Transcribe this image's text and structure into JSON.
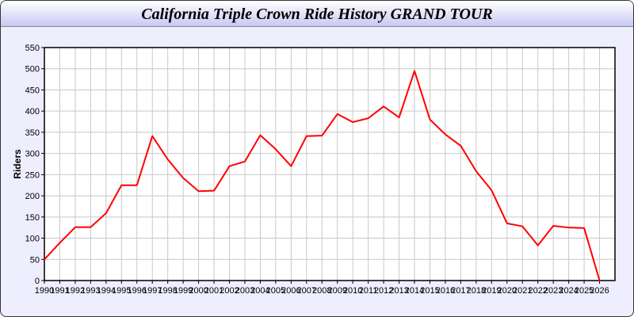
{
  "title": "California Triple Crown Ride History GRAND TOUR",
  "chart_data": {
    "type": "line",
    "title": "California Triple Crown Ride History GRAND TOUR",
    "xlabel": "",
    "ylabel": "Riders",
    "xlim": [
      1990,
      2027
    ],
    "ylim": [
      0,
      550
    ],
    "yticks": [
      0,
      50,
      100,
      150,
      200,
      250,
      300,
      350,
      400,
      450,
      500,
      550
    ],
    "grid": true,
    "line_color": "#ff0000",
    "x": [
      1990,
      1991,
      1992,
      1993,
      1994,
      1995,
      1996,
      1997,
      1998,
      1999,
      2000,
      2001,
      2002,
      2003,
      2004,
      2005,
      2006,
      2007,
      2008,
      2009,
      2010,
      2011,
      2012,
      2013,
      2014,
      2015,
      2016,
      2017,
      2018,
      2019,
      2020,
      2021,
      2022,
      2023,
      2024,
      2025,
      2026
    ],
    "values": [
      50,
      89,
      126,
      126,
      159,
      225,
      225,
      341,
      286,
      242,
      211,
      212,
      270,
      281,
      343,
      310,
      270,
      341,
      342,
      393,
      374,
      383,
      411,
      385,
      495,
      380,
      345,
      318,
      258,
      213,
      135,
      128,
      83,
      129,
      125,
      124,
      0
    ]
  }
}
